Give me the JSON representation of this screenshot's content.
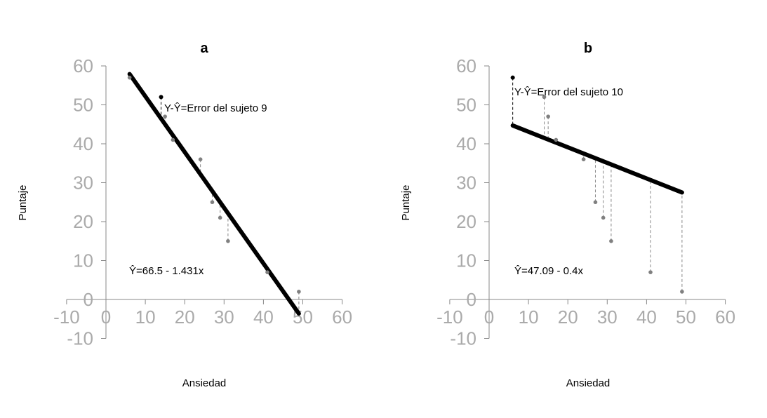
{
  "chart_data": [
    {
      "type": "scatter",
      "title": "a",
      "xlabel": "Ansiedad",
      "ylabel": "Puntaje",
      "xlim": [
        -10,
        60
      ],
      "ylim": [
        -10,
        60
      ],
      "x_ticks": [
        "-10",
        "0",
        "10",
        "20",
        "30",
        "40",
        "50",
        "60"
      ],
      "y_ticks": [
        "-10",
        "0",
        "10",
        "20",
        "30",
        "40",
        "50",
        "60"
      ],
      "points": [
        {
          "x": 6,
          "y": 57
        },
        {
          "x": 14,
          "y": 52
        },
        {
          "x": 15,
          "y": 47
        },
        {
          "x": 17,
          "y": 41
        },
        {
          "x": 24,
          "y": 36
        },
        {
          "x": 27,
          "y": 25
        },
        {
          "x": 29,
          "y": 21
        },
        {
          "x": 31,
          "y": 15
        },
        {
          "x": 41,
          "y": 7
        },
        {
          "x": 49,
          "y": 2
        }
      ],
      "highlight_index": 1,
      "regression": {
        "intercept": 66.5,
        "slope": -1.431,
        "x_range": [
          6,
          49
        ]
      },
      "equation_label": "Ŷ=66.5 - 1.431x",
      "error_label": "Y-Ŷ=Error del sujeto 9"
    },
    {
      "type": "scatter",
      "title": "b",
      "xlabel": "Ansiedad",
      "ylabel": "Puntaje",
      "xlim": [
        -10,
        60
      ],
      "ylim": [
        -10,
        60
      ],
      "x_ticks": [
        "-10",
        "0",
        "10",
        "20",
        "30",
        "40",
        "50",
        "60"
      ],
      "y_ticks": [
        "-10",
        "0",
        "10",
        "20",
        "30",
        "40",
        "50",
        "60"
      ],
      "points": [
        {
          "x": 6,
          "y": 57
        },
        {
          "x": 14,
          "y": 52
        },
        {
          "x": 15,
          "y": 47
        },
        {
          "x": 17,
          "y": 41
        },
        {
          "x": 24,
          "y": 36
        },
        {
          "x": 27,
          "y": 25
        },
        {
          "x": 29,
          "y": 21
        },
        {
          "x": 31,
          "y": 15
        },
        {
          "x": 41,
          "y": 7
        },
        {
          "x": 49,
          "y": 2
        }
      ],
      "highlight_index": 0,
      "regression": {
        "intercept": 47.09,
        "slope": -0.4,
        "x_range": [
          6,
          49
        ]
      },
      "equation_label": "Ŷ=47.09 - 0.4x",
      "error_label": "Y-Ŷ=Error del sujeto 10"
    }
  ]
}
